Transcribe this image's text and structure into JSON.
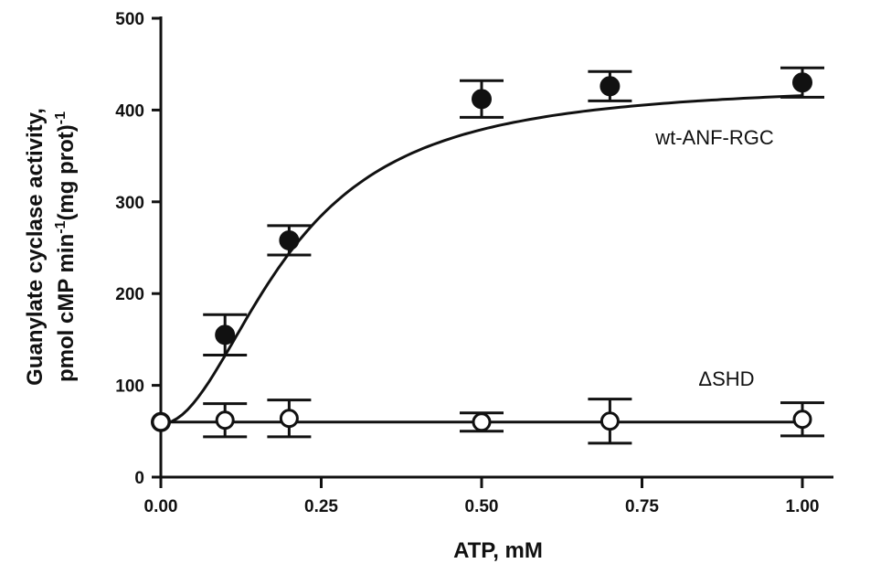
{
  "chart_data": {
    "type": "scatter",
    "xlabel": "ATP,  mM",
    "ylabel_line1": "Guanylate cyclase activity,",
    "ylabel_line2_main": "pmol cMP min",
    "ylabel_line2_sup1": "-1",
    "ylabel_line2_mid": "(mg prot)",
    "ylabel_line2_sup2": "-1",
    "xlim": [
      0,
      1.0
    ],
    "ylim": [
      0,
      500
    ],
    "xticks": [
      0.0,
      0.25,
      0.5,
      0.75,
      1.0
    ],
    "xtick_labels": [
      "0.00",
      "0.25",
      "0.50",
      "0.75",
      "1.00"
    ],
    "yticks": [
      0,
      100,
      200,
      300,
      400,
      500
    ],
    "ytick_labels": [
      "0",
      "100",
      "200",
      "300",
      "400",
      "500"
    ],
    "series": [
      {
        "name": "wt-ANF-RGC",
        "marker": "filled-circle",
        "points": [
          {
            "x": 0.0,
            "y": 60,
            "err": 0
          },
          {
            "x": 0.1,
            "y": 155,
            "err": 22
          },
          {
            "x": 0.2,
            "y": 258,
            "err": 16
          },
          {
            "x": 0.5,
            "y": 412,
            "err": 20
          },
          {
            "x": 0.7,
            "y": 426,
            "err": 16
          },
          {
            "x": 1.0,
            "y": 430,
            "err": 16
          }
        ],
        "fit": {
          "model": "hill",
          "base": 58,
          "vmax": 372,
          "k": 0.2,
          "n": 2.0
        }
      },
      {
        "name": "ΔSHD",
        "marker": "open-circle",
        "points": [
          {
            "x": 0.0,
            "y": 60,
            "err": 0
          },
          {
            "x": 0.1,
            "y": 62,
            "err": 18
          },
          {
            "x": 0.2,
            "y": 64,
            "err": 20
          },
          {
            "x": 0.5,
            "y": 60,
            "err": 10
          },
          {
            "x": 0.7,
            "y": 61,
            "err": 24
          },
          {
            "x": 1.0,
            "y": 63,
            "err": 18
          }
        ],
        "fit": {
          "model": "flat",
          "value": 60
        }
      }
    ]
  }
}
